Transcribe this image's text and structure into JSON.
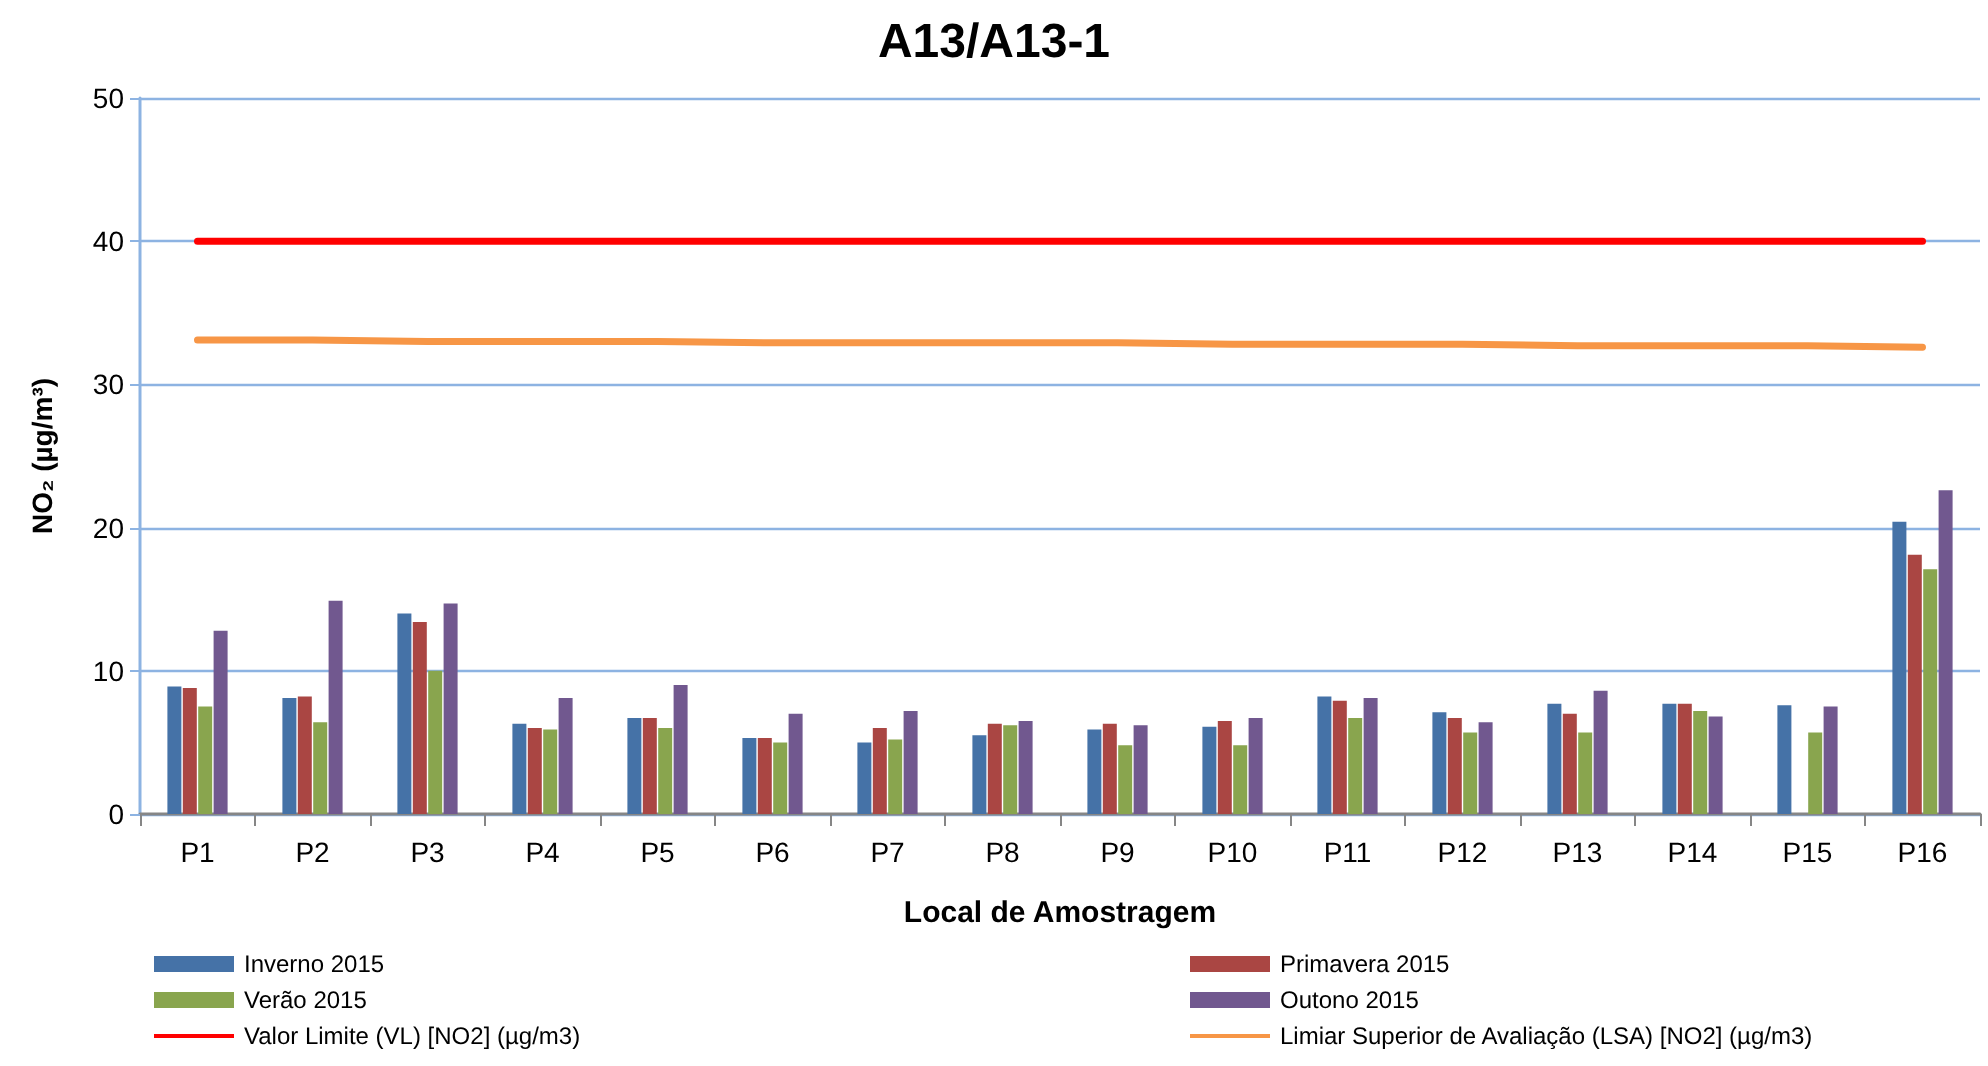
{
  "chart_data": {
    "type": "bar",
    "title": "A13/A13-1",
    "xlabel": "Local de Amostragem",
    "ylabel": "NO₂ (µg/m³)",
    "categories": [
      "P1",
      "P2",
      "P3",
      "P4",
      "P5",
      "P6",
      "P7",
      "P8",
      "P9",
      "P10",
      "P11",
      "P12",
      "P13",
      "P14",
      "P15",
      "P16"
    ],
    "series": [
      {
        "name": "Inverno 2015",
        "color": "#4572a7",
        "values": [
          8.9,
          8.1,
          14.0,
          6.3,
          6.7,
          5.3,
          5.0,
          5.5,
          5.9,
          6.1,
          8.2,
          7.1,
          7.7,
          7.7,
          7.6,
          20.4
        ]
      },
      {
        "name": "Primavera 2015",
        "color": "#aa4643",
        "values": [
          8.8,
          8.2,
          13.4,
          6.0,
          6.7,
          5.3,
          6.0,
          6.3,
          6.3,
          6.5,
          7.9,
          6.7,
          7.0,
          7.7,
          null,
          18.1
        ]
      },
      {
        "name": "Verão 2015",
        "color": "#89a54e",
        "values": [
          7.5,
          6.4,
          10.0,
          5.9,
          6.0,
          5.0,
          5.2,
          6.2,
          4.8,
          4.8,
          6.7,
          5.7,
          5.7,
          7.2,
          5.7,
          17.1
        ]
      },
      {
        "name": "Outono 2015",
        "color": "#71588f",
        "values": [
          12.8,
          14.9,
          14.7,
          8.1,
          9.0,
          7.0,
          7.2,
          6.5,
          6.2,
          6.7,
          8.1,
          6.4,
          8.6,
          6.8,
          7.5,
          22.6
        ]
      },
      {
        "name": "Valor Limite (VL) [NO2] (µg/m3)",
        "type": "line",
        "color": "#ff0000",
        "values": [
          40,
          40,
          40,
          40,
          40,
          40,
          40,
          40,
          40,
          40,
          40,
          40,
          40,
          40,
          40,
          40
        ]
      },
      {
        "name": "Limiar Superior de Avaliação (LSA) [NO2] (µg/m3)",
        "type": "line",
        "color": "#f79646",
        "values": [
          33.1,
          33.1,
          33.0,
          33.0,
          33.0,
          32.9,
          32.9,
          32.9,
          32.9,
          32.8,
          32.8,
          32.8,
          32.7,
          32.7,
          32.7,
          32.6
        ]
      }
    ],
    "ylim": [
      0,
      50
    ],
    "yticks": [
      0,
      10,
      20,
      30,
      40,
      50
    ],
    "grid": "y",
    "legend": "bottom",
    "marker": "none",
    "line_style": "solid"
  }
}
